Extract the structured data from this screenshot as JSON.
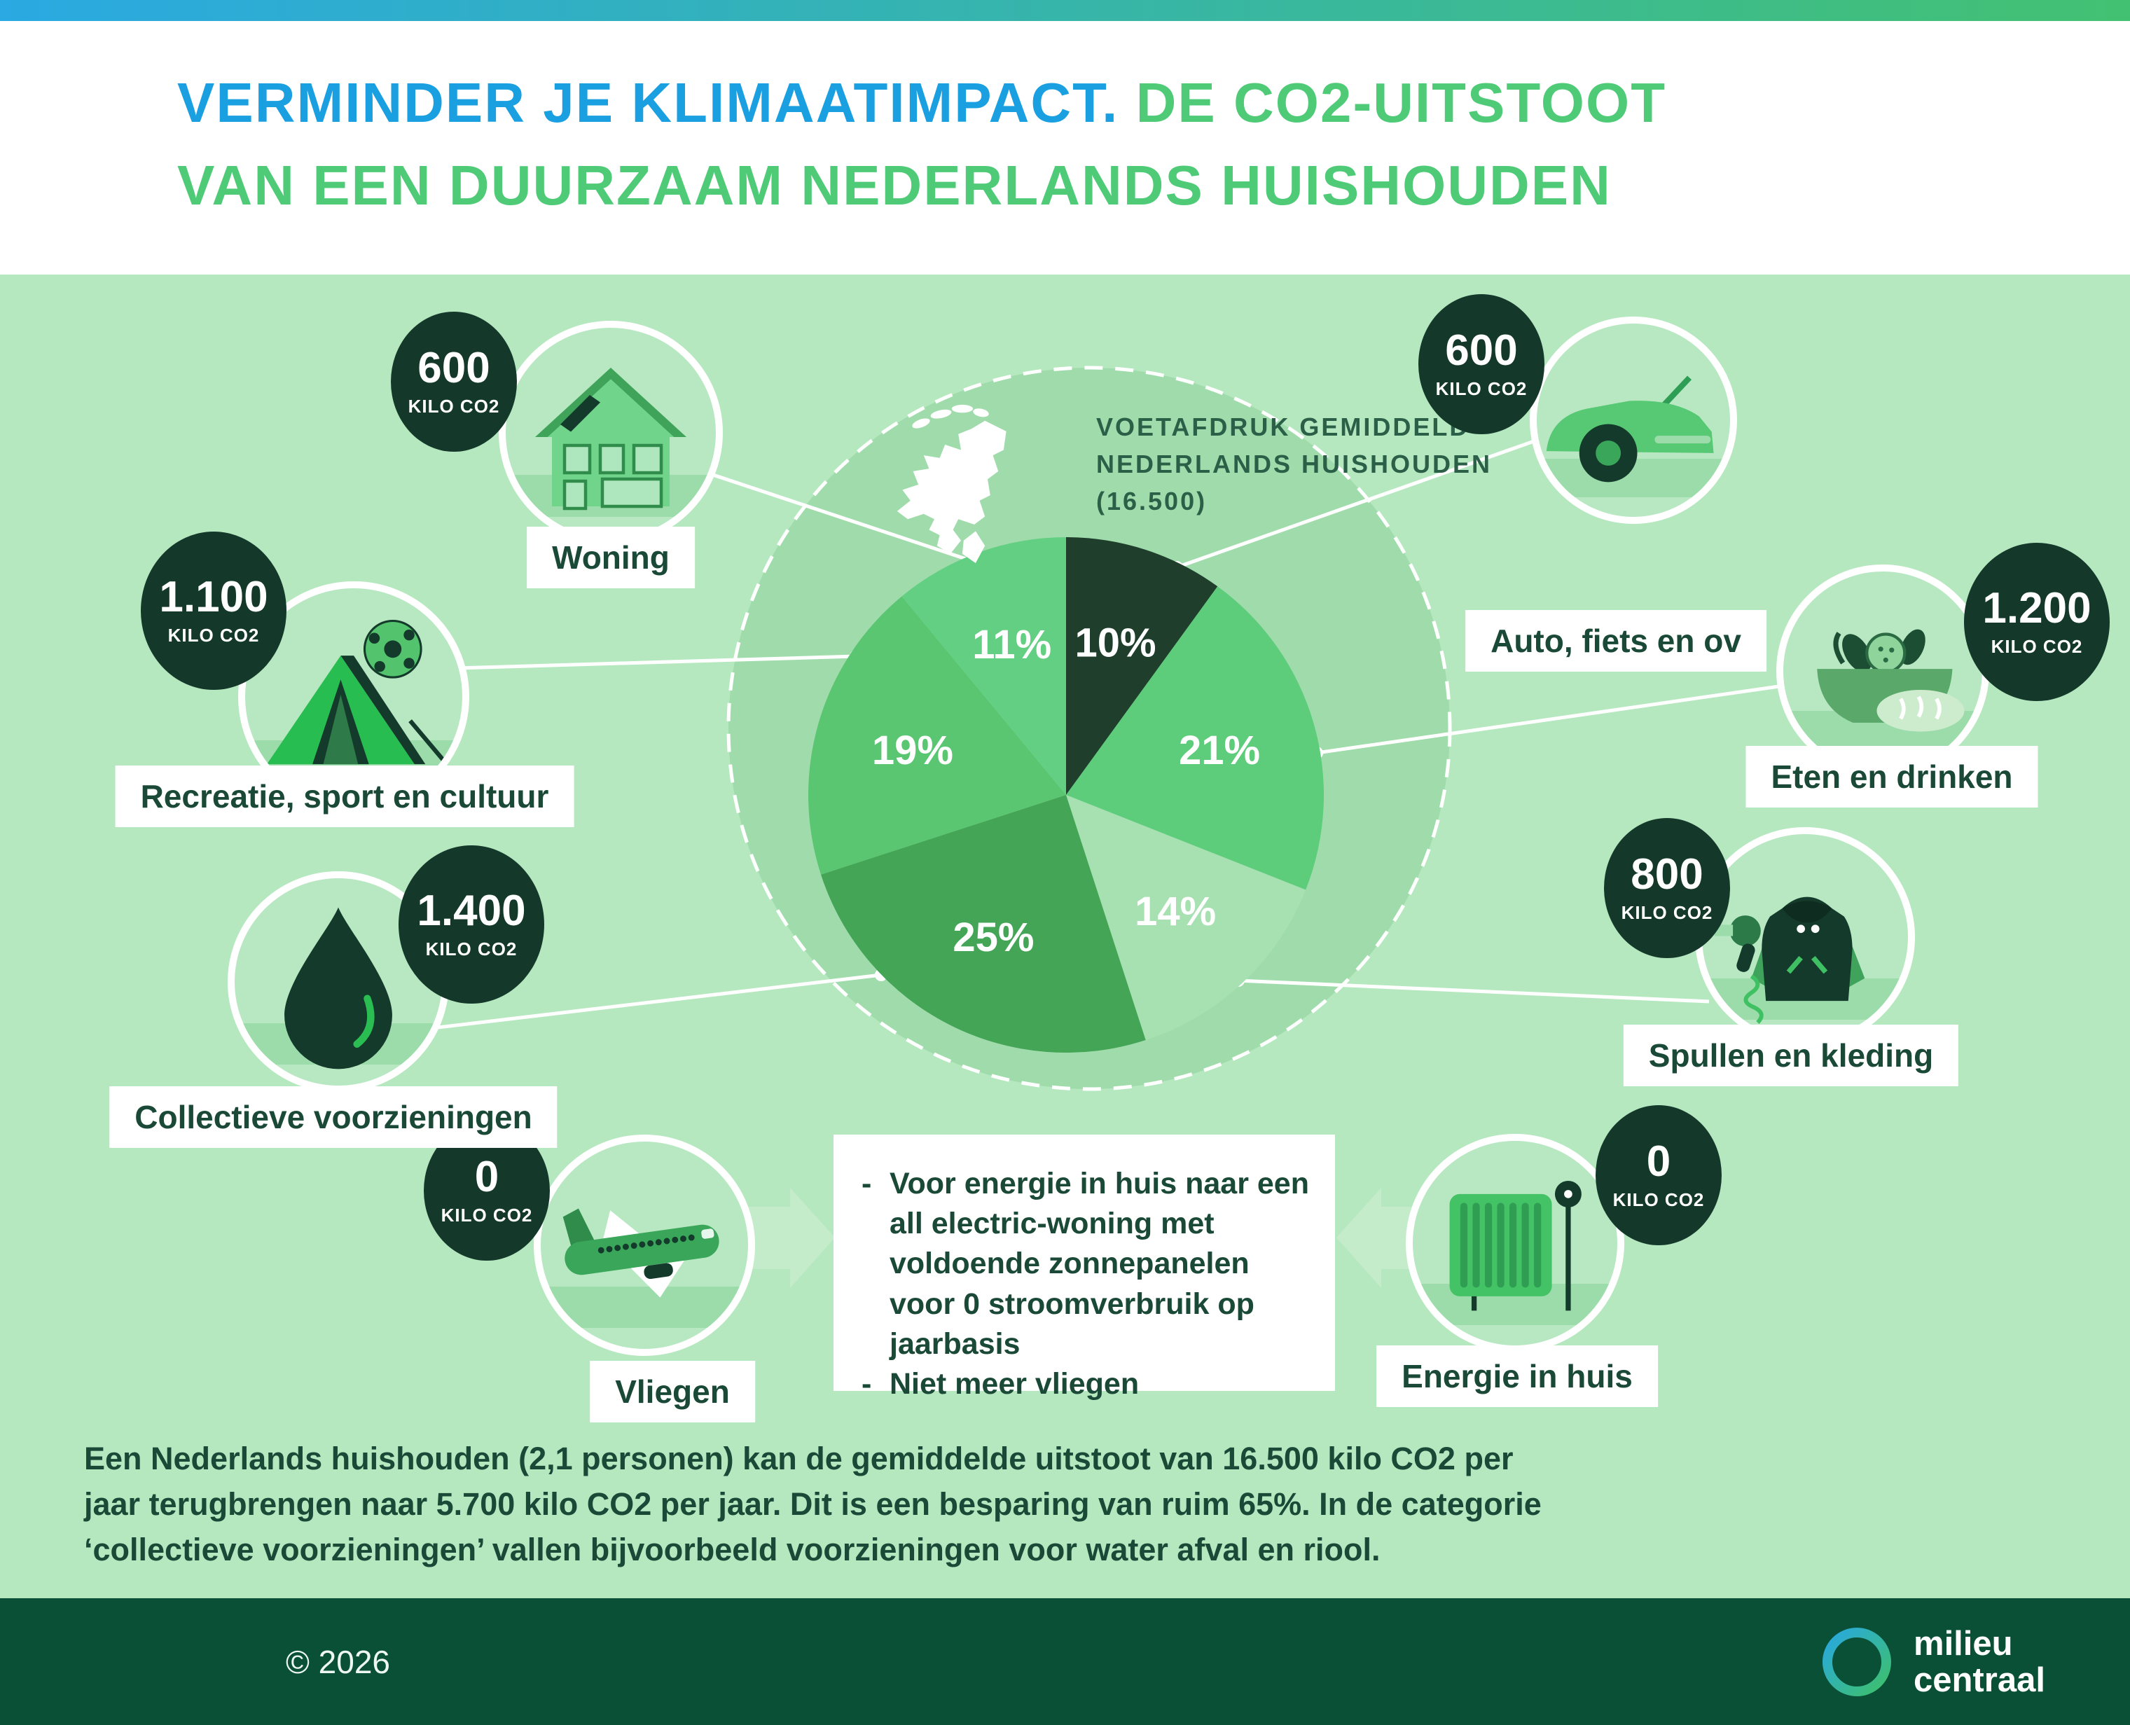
{
  "header": {
    "title_line1_part1": "VERMINDER JE KLIMAATIMPACT.",
    "title_line1_part2": " DE CO2-UITSTOOT",
    "title_line2": "VAN EEN DUURZAAM NEDERLANDS HUISHOUDEN"
  },
  "center_note": {
    "line1": "VOETAFDRUK GEMIDDELD",
    "line2": "NEDERLANDS HUISHOUDEN",
    "line3": "(16.500)"
  },
  "chart_data": {
    "type": "pie",
    "title": "CO2-uitstoot van een duurzaam Nederlands huishouden",
    "reference_circle_label": "Voetafdruk gemiddeld Nederlands huishouden (16.500)",
    "start_angle_deg": 0,
    "clockwise": true,
    "slices": [
      {
        "label": "Auto, fiets en ov",
        "value_percent": 10,
        "display": "10%",
        "kilo_co2": "600",
        "color": "#1f3f2c"
      },
      {
        "label": "Eten en drinken",
        "value_percent": 21,
        "display": "21%",
        "kilo_co2": "1.200",
        "color": "#5dcc7b"
      },
      {
        "label": "Spullen en kleding",
        "value_percent": 14,
        "display": "14%",
        "kilo_co2": "800",
        "color": "#a7e1b2"
      },
      {
        "label": "Collectieve voorzieningen",
        "value_percent": 25,
        "display": "25%",
        "kilo_co2": "1.400",
        "color": "#45a557"
      },
      {
        "label": "Recreatie, sport en cultuur",
        "value_percent": 19,
        "display": "19%",
        "kilo_co2": "1.100",
        "color": "#5ac671"
      },
      {
        "label": "Woning",
        "value_percent": 11,
        "display": "11%",
        "kilo_co2": "600",
        "color": "#62cf82"
      }
    ]
  },
  "categories": [
    {
      "id": "woning",
      "label": "Woning",
      "kilo": "600",
      "unit": "KILO CO2"
    },
    {
      "id": "recreatie",
      "label": "Recreatie, sport en cultuur",
      "kilo": "1.100",
      "unit": "KILO CO2"
    },
    {
      "id": "collectief",
      "label": "Collectieve voorzieningen",
      "kilo": "1.400",
      "unit": "KILO CO2"
    },
    {
      "id": "vliegen",
      "label": "Vliegen",
      "kilo": "0",
      "unit": "KILO CO2"
    },
    {
      "id": "auto",
      "label": "Auto, fiets en ov",
      "kilo": "600",
      "unit": "KILO CO2"
    },
    {
      "id": "eten",
      "label": "Eten en drinken",
      "kilo": "1.200",
      "unit": "KILO CO2"
    },
    {
      "id": "spullen",
      "label": "Spullen en kleding",
      "kilo": "800",
      "unit": "KILO CO2"
    },
    {
      "id": "energie",
      "label": "Energie in huis",
      "kilo": "0",
      "unit": "KILO CO2"
    }
  ],
  "measures_box": {
    "marker": "-",
    "items": [
      "Voor energie in huis naar een all electric-woning met voldoende zonnepanelen voor 0 stroomverbruik op jaarbasis",
      "Niet meer vliegen"
    ]
  },
  "footnote": {
    "lines": [
      "Een Nederlands huishouden (2,1 personen) kan de gemiddelde uitstoot van 16.500 kilo CO2 per",
      "jaar terugbrengen naar 5.700 kilo CO2 per jaar. Dit is een besparing van ruim 65%. In de categorie",
      "‘collectieve voorzieningen’ vallen bijvoorbeeld voorzieningen voor water afval en riool."
    ]
  },
  "footer": {
    "copyright": "© 2026",
    "logo_line1": "milieu",
    "logo_line2": "centraal"
  }
}
